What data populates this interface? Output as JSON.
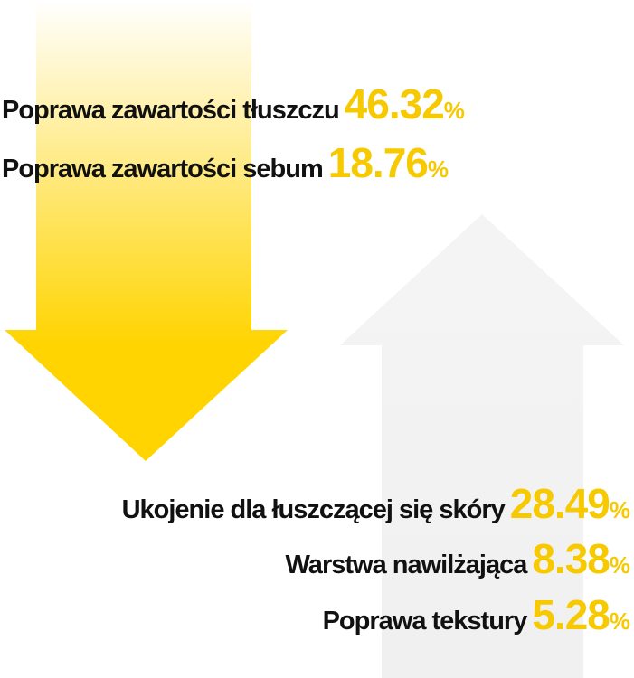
{
  "top": [
    {
      "label": "Poprawa zawartości tłuszczu",
      "value": 46.32,
      "unit": "%"
    },
    {
      "label": "Poprawa zawartości sebum",
      "value": 18.76,
      "unit": "%"
    }
  ],
  "bottom": [
    {
      "label": "Ukojenie dla łuszczącej się skóry",
      "value": 28.49,
      "unit": "%"
    },
    {
      "label": "Warstwa nawilżająca",
      "value": 8.38,
      "unit": "%"
    },
    {
      "label": "Poprawa tekstury",
      "value": 5.28,
      "unit": "%"
    }
  ]
}
